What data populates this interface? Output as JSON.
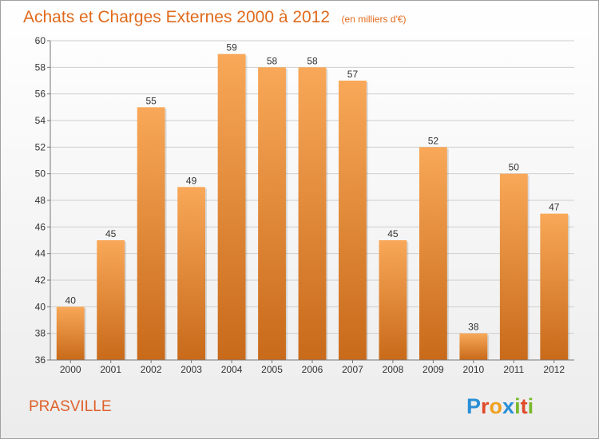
{
  "chart_data": {
    "type": "bar",
    "title": "Achats et Charges Externes 2000 à 2012",
    "subtitle": "(en milliers d'€)",
    "categories": [
      "2000",
      "2001",
      "2002",
      "2003",
      "2004",
      "2005",
      "2006",
      "2007",
      "2008",
      "2009",
      "2010",
      "2011",
      "2012"
    ],
    "values": [
      40,
      45,
      55,
      49,
      59,
      58,
      58,
      57,
      45,
      52,
      38,
      50,
      47
    ],
    "ylim": [
      36,
      60
    ],
    "yticks": [
      36,
      38,
      40,
      42,
      44,
      46,
      48,
      50,
      52,
      54,
      56,
      58,
      60
    ],
    "grid": true,
    "xlabel": "",
    "ylabel": ""
  },
  "footer": {
    "commune": "PRASVILLE",
    "logo": [
      "P",
      "r",
      "o",
      "x",
      "i",
      "t",
      "i"
    ]
  },
  "colors": {
    "bar_top": "#f8a858",
    "bar_bottom": "#c86a1a",
    "title": "#e06a1c",
    "grid": "#cfcfcf",
    "logo": [
      "#2a8fd6",
      "#e04a2a",
      "#f0a020",
      "#2a8fd6",
      "#7ab82a",
      "#e04a2a",
      "#7ab82a"
    ]
  }
}
